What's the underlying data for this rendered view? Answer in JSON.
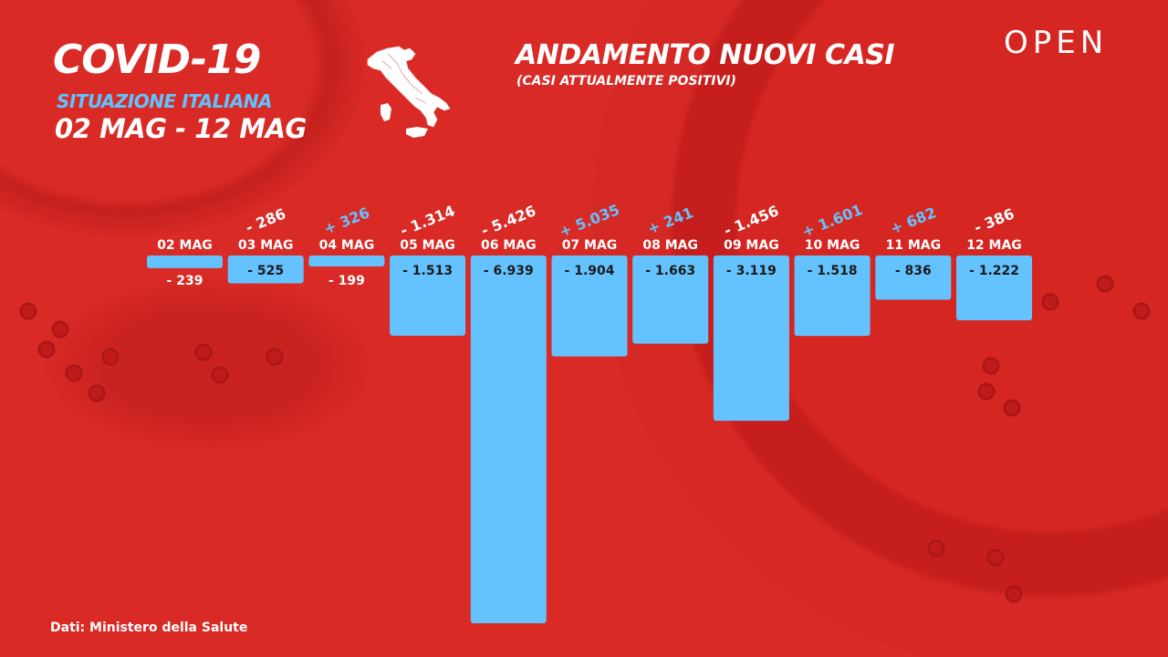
{
  "header": {
    "title": "COVID-19",
    "subtitle": "SITUAZIONE ITALIANA",
    "date_range": "02 MAG - 12 MAG"
  },
  "logo": "OPEN",
  "source": "Dati: Ministero della Salute",
  "colors": {
    "background": "#d92a26",
    "bar": "#64c3ff",
    "positive_change": "#64c3ff",
    "negative_change": "#ffffff"
  },
  "icons": {
    "map": "italy-map-icon"
  },
  "chart_data": {
    "type": "bar",
    "title": "ANDAMENTO NUOVI CASI",
    "subtitle": "(CASI ATTUALMENTE POSITIVI)",
    "categories": [
      "02 MAG",
      "03 MAG",
      "04 MAG",
      "05 MAG",
      "06 MAG",
      "07 MAG",
      "08 MAG",
      "09 MAG",
      "10 MAG",
      "11 MAG",
      "12 MAG"
    ],
    "values": [
      -239,
      -525,
      -199,
      -1513,
      -6939,
      -1904,
      -1663,
      -3119,
      -1518,
      -836,
      -1222
    ],
    "value_labels": [
      "- 239",
      "- 525",
      "- 199",
      "- 1.513",
      "- 6.939",
      "- 1.904",
      "- 1.663",
      "- 3.119",
      "- 1.518",
      "- 836",
      "- 1.222"
    ],
    "changes": [
      null,
      -286,
      326,
      -1314,
      -5426,
      5035,
      241,
      -1456,
      1601,
      682,
      -386
    ],
    "change_labels": [
      "",
      "- 286",
      "+ 326",
      "- 1.314",
      "- 5.426",
      "+ 5.035",
      "+ 241",
      "- 1.456",
      "+ 1.601",
      "+ 682",
      "- 386"
    ],
    "ylim": [
      -6939,
      0
    ],
    "grid": false,
    "legend": "none"
  }
}
